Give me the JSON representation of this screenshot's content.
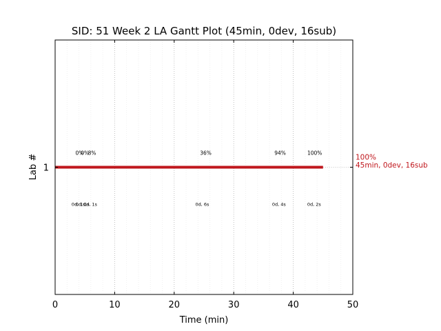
{
  "chart_data": {
    "type": "gantt",
    "title": "SID: 51 Week 2 LA Gantt Plot (45min, 0dev, 16sub)",
    "xlabel": "Time (min)",
    "ylabel": "Lab #",
    "xlim": [
      0,
      50
    ],
    "xticks": [
      0,
      10,
      20,
      30,
      40,
      50
    ],
    "x_tick_labels": [
      "0",
      "10",
      "20",
      "30",
      "40",
      "50"
    ],
    "minor_grid_step": 2,
    "grid": true,
    "lanes": [
      {
        "label": "1",
        "bar": {
          "start": 0,
          "end": 45,
          "color": "#c0171d"
        },
        "end_label_lines": [
          "100%",
          "45min, 0dev, 16sub"
        ],
        "top_annotations": [
          {
            "x": 4.1,
            "text": "0%"
          },
          {
            "x": 5.0,
            "text": "0%"
          },
          {
            "x": 6.2,
            "text": "8%"
          },
          {
            "x": 25.3,
            "text": "36%"
          },
          {
            "x": 37.8,
            "text": "94%"
          },
          {
            "x": 43.6,
            "text": "100%"
          }
        ],
        "bottom_annotations": [
          {
            "x": 3.9,
            "text": "0d, 1s"
          },
          {
            "x": 4.6,
            "text": "0d, 1s"
          },
          {
            "x": 5.9,
            "text": "0d, 1s"
          },
          {
            "x": 24.7,
            "text": "0d, 6s"
          },
          {
            "x": 37.6,
            "text": "0d, 4s"
          },
          {
            "x": 43.5,
            "text": "0d, 2s"
          }
        ]
      }
    ],
    "colors": {
      "bar": "#c0171d",
      "end_label": "#c0171d",
      "major_grid": "#b0b0b0",
      "minor_grid": "#ececec"
    }
  }
}
